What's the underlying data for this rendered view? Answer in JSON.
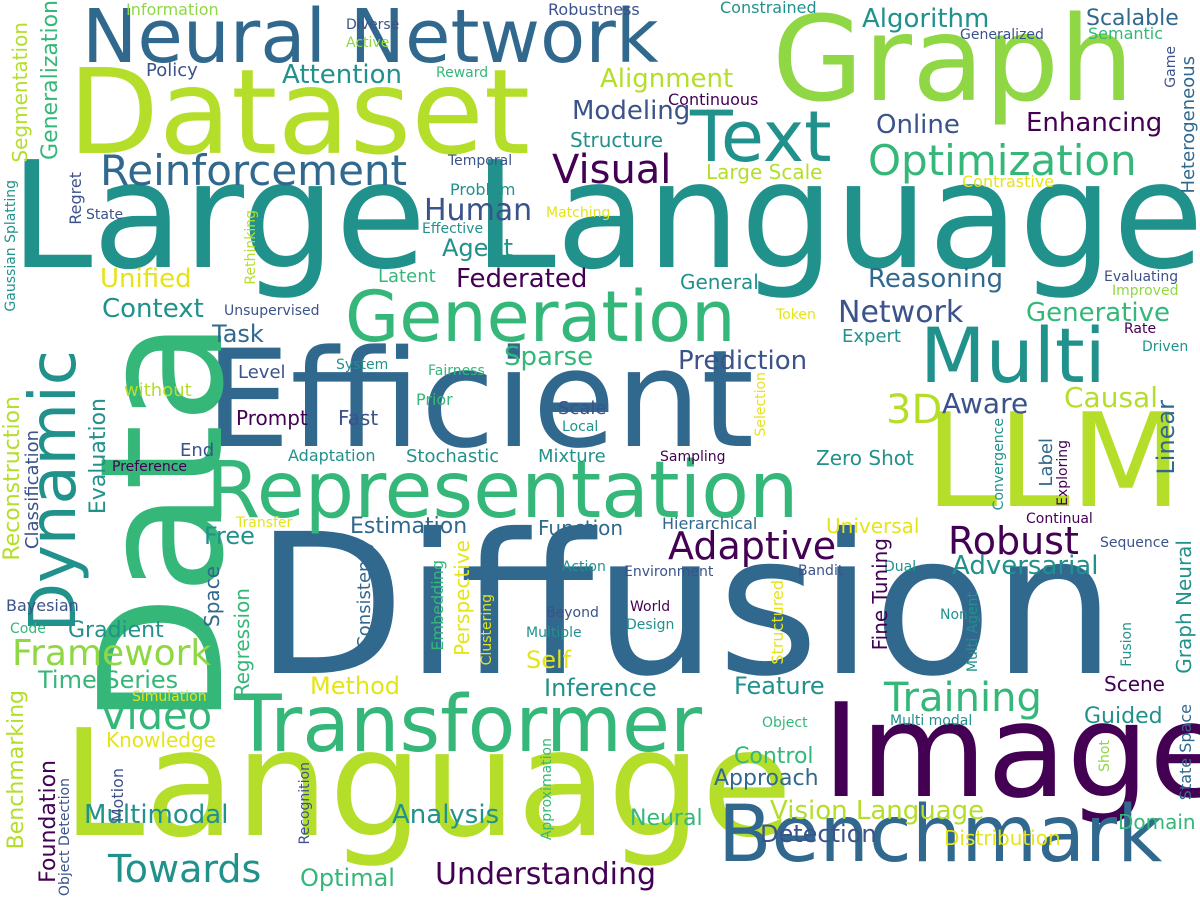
{
  "palette": {
    "dark_purple": "#440154",
    "indigo": "#3b528b",
    "blue": "#31688e",
    "teal": "#21918c",
    "green": "#35b779",
    "lime": "#8fd744",
    "yellow_green": "#b5de2b",
    "yellow": "#e5e419"
  },
  "words": {
    "diffusion": "Diffusion",
    "large_language": "Large Language",
    "efficient": "Efficient",
    "data": "Data",
    "dataset": "Dataset",
    "graph": "Graph",
    "language": "Language",
    "llm": "LLM",
    "image": "Image",
    "neural_network": "Neural Network",
    "representation": "Representation",
    "transformer": "Transformer",
    "benchmark": "Benchmark",
    "multi": "Multi",
    "generation": "Generation",
    "text": "Text",
    "dynamic": "Dynamic",
    "reinforcement": "Reinforcement",
    "optimization": "Optimization",
    "visual": "Visual",
    "training": "Training",
    "adaptive": "Adaptive",
    "robust": "Robust",
    "video": "Video",
    "framework": "Framework",
    "towards": "Towards",
    "understanding": "Understanding",
    "human": "Human",
    "federated": "Federated",
    "reasoning": "Reasoning",
    "network": "Network",
    "generative": "Generative",
    "three_d": "3D",
    "aware": "Aware",
    "causal": "Causal",
    "linear": "Linear",
    "adversarial": "Adversarial",
    "prediction": "Prediction",
    "sparse": "Sparse",
    "alignment": "Alignment",
    "algorithm": "Algorithm",
    "attention": "Attention",
    "modeling": "Modeling",
    "online": "Online",
    "enhancing": "Enhancing",
    "scalable": "Scalable",
    "structure": "Structure",
    "large_scale": "Large Scale",
    "contrastive": "Contrastive",
    "unified": "Unified",
    "context": "Context",
    "task": "Task",
    "agent": "Agent",
    "policy": "Policy",
    "information": "Information",
    "diverse": "Diverse",
    "active": "Active",
    "robustness": "Robustness",
    "constrained": "Constrained",
    "generalized": "Generalized",
    "semantic": "Semantic",
    "reward": "Reward",
    "continuous": "Continuous",
    "temporal": "Temporal",
    "problem": "Problem",
    "state": "State",
    "matching": "Matching",
    "effective": "Effective",
    "regret": "Regret",
    "general": "General",
    "latent": "Latent",
    "unsupervised": "Unsupervised",
    "token": "Token",
    "expert": "Expert",
    "rate": "Rate",
    "driven": "Driven",
    "evaluating": "Evaluating",
    "improved": "Improved",
    "level": "Level",
    "system": "System",
    "fairness": "Fairness",
    "prior": "Prior",
    "without": "without",
    "prompt": "Prompt",
    "fast": "Fast",
    "scale": "Scale",
    "local": "Local",
    "end": "End",
    "preference": "Preference",
    "adaptation": "Adaptation",
    "stochastic": "Stochastic",
    "mixture": "Mixture",
    "sampling": "Sampling",
    "zero_shot": "Zero Shot",
    "label": "Label",
    "convergence": "Convergence",
    "exploring": "Exploring",
    "estimation": "Estimation",
    "function": "Function",
    "hierarchical": "Hierarchical",
    "universal": "Universal",
    "continual": "Continual",
    "transfer": "Transfer",
    "free": "Free",
    "sequence": "Sequence",
    "action": "Action",
    "environment": "Environment",
    "bandit": "Bandit",
    "dual": "Dual",
    "bayesian": "Bayesian",
    "code": "Code",
    "gradient": "Gradient",
    "beyond": "Beyond",
    "multiple": "Multiple",
    "world": "World",
    "design": "Design",
    "non": "Non",
    "self": "Self",
    "method": "Method",
    "inference": "Inference",
    "feature": "Feature",
    "scene": "Scene",
    "guided": "Guided",
    "time_series": "Time Series",
    "simulation": "Simulation",
    "knowledge": "Knowledge",
    "object": "Object",
    "multi_modal": "Multi modal",
    "control": "Control",
    "approach": "Approach",
    "vision_language": "Vision Language",
    "detection": "Detection",
    "distribution": "Distribution",
    "domain": "Domain",
    "multimodal": "Multimodal",
    "analysis": "Analysis",
    "neural": "Neural",
    "optimal": "Optimal",
    "segmentation": "Segmentation",
    "generalization": "Generalization",
    "gaussian_splatting": "Gaussian Splatting",
    "reconstruction": "Reconstruction",
    "classification": "Classification",
    "evaluation": "Evaluation",
    "benchmarking": "Benchmarking",
    "foundation": "Foundation",
    "object_detection": "Object Detection",
    "motion": "Motion",
    "rethinking": "Rethinking",
    "space": "Space",
    "regression": "Regression",
    "consistency": "Consistency",
    "embedding": "Embedding",
    "perspective": "Perspective",
    "clustering": "Clustering",
    "recognition": "Recognition",
    "approximation": "Approximation",
    "selection": "Selection",
    "fine_tuning": "Fine Tuning",
    "structured": "Structured",
    "multi_agent": "Multi Agent",
    "graph_neural": "Graph Neural",
    "state_space": "State Space",
    "fusion": "Fusion",
    "shot": "Shot",
    "game": "Game",
    "heterogeneous": "Heterogeneous"
  }
}
